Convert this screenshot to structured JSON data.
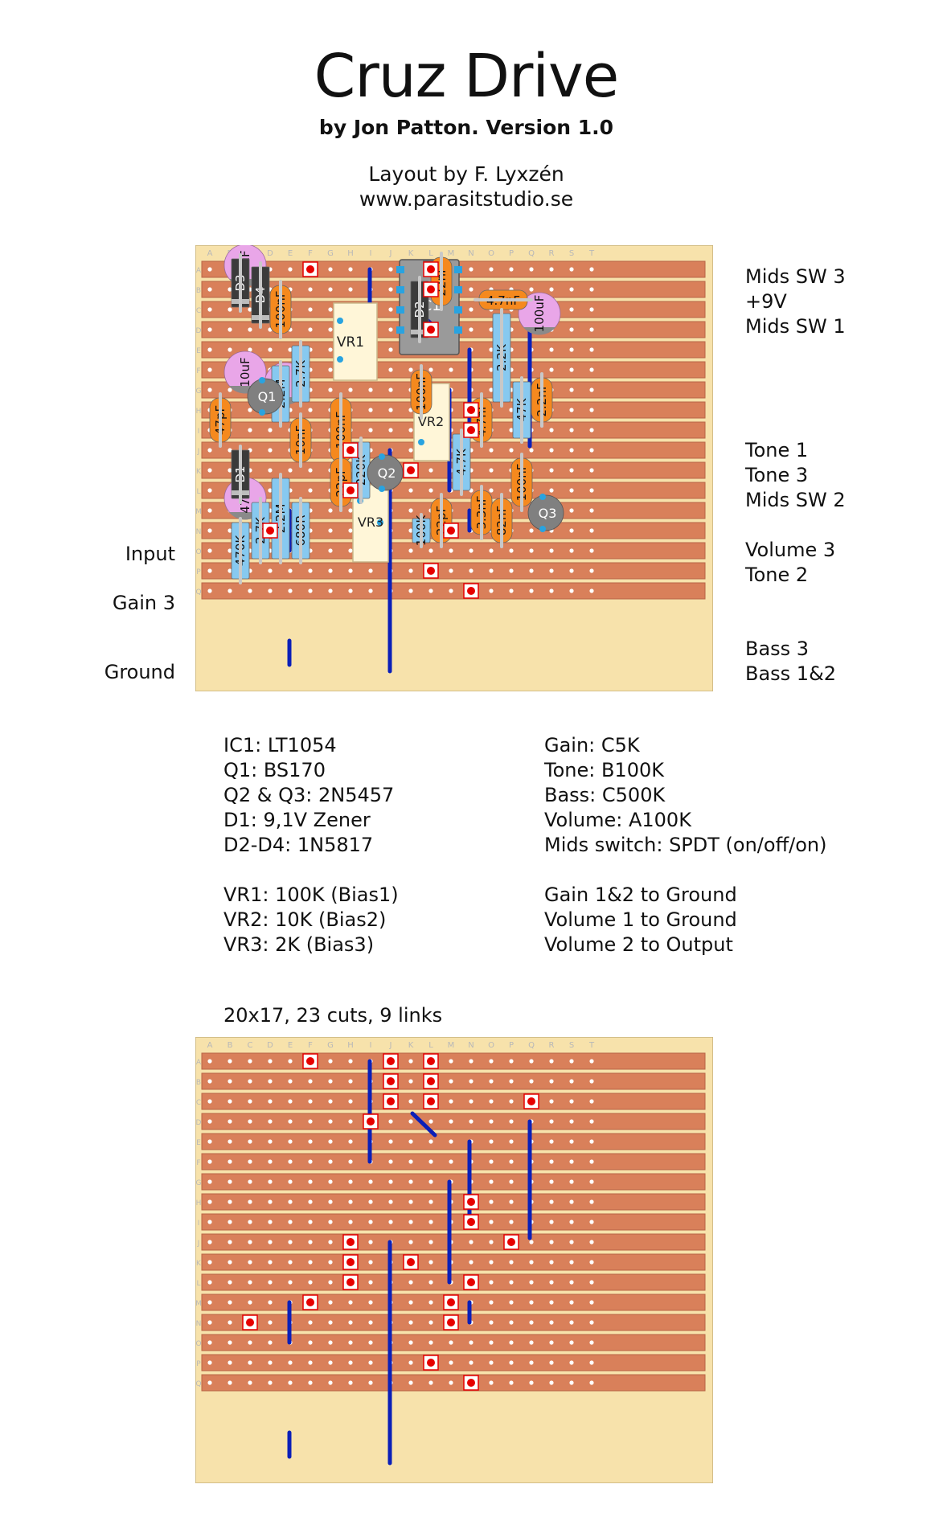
{
  "header": {
    "title": "Cruz Drive",
    "subtitle": "by Jon Patton. Version 1.0",
    "layout_by": "Layout by F. Lyxzén",
    "website": "www.parasitstudio.se"
  },
  "board": {
    "column_letters": [
      "A",
      "B",
      "C",
      "D",
      "E",
      "F",
      "G",
      "H",
      "I",
      "J",
      "K",
      "L",
      "M",
      "N",
      "O",
      "P",
      "Q",
      "R",
      "S",
      "T"
    ],
    "row_letters": [
      "A",
      "B",
      "C",
      "D",
      "E",
      "F",
      "G",
      "H",
      "I",
      "J",
      "K",
      "L",
      "M",
      "N",
      "O",
      "P",
      "Q"
    ],
    "colors": {
      "background": "#f7e2ab",
      "strip": "#d9805a",
      "strip_edge": "#b86446",
      "cut_mark": "#e60000",
      "link_wire": "#0b1fb8",
      "resistor": "#87c9f0",
      "capacitor_film": "#f5891e",
      "electrolytic": "#e9a6e8",
      "diode_body": "#3b3b3b",
      "transistor": "#808080",
      "trimmer": "#fff6d8",
      "ic_body": "#9a9a9a",
      "pin_cyan": "#29a3e0"
    }
  },
  "left_labels": {
    "input": "Input",
    "gain3": "Gain 3",
    "ground": "Ground"
  },
  "right_labels": {
    "mids_sw3": "Mids SW 3",
    "v9": "+9V",
    "mids_sw1": "Mids SW 1",
    "tone1": "Tone 1",
    "tone3": "Tone 3",
    "mids_sw2": "Mids SW 2",
    "volume3": "Volume 3",
    "tone2": "Tone 2",
    "bass3": "Bass 3",
    "bass12": "Bass 1&2"
  },
  "components": {
    "ic1": "IC1",
    "vr1": "VR1",
    "vr2": "VR2",
    "vr3": "VR3",
    "q1": "Q1",
    "q2": "Q2",
    "q3": "Q3",
    "d1": "D1",
    "d2": "D2",
    "d3": "D3",
    "d4": "D4",
    "c_10uF": "10uF",
    "c_47uF": "47uF",
    "c_100uF": "100uF",
    "c_100nF": "100nF",
    "c_22nF": "22nF",
    "c_4n7": "4.7nF",
    "c_47pF": "47pF",
    "c_10nF": "10nF",
    "c_22pF": "22pF",
    "c_2n2": "2.2nF",
    "c_3n3": "3.3nF",
    "c_82nF": "82nF",
    "r_2M2": "2.2M",
    "r_2K7": "2.7K",
    "r_2K2": "2.2K",
    "r_47K": "47K",
    "r_220K": "220K",
    "r_4K7": "4.7K",
    "r_470K": "470K",
    "r_680R": "680R",
    "r_100K": "100K"
  },
  "specs_left": [
    "IC1: LT1054",
    "Q1: BS170",
    "Q2 & Q3: 2N5457",
    "D1: 9,1V Zener",
    "D2-D4: 1N5817",
    "",
    "VR1: 100K (Bias1)",
    "VR2: 10K (Bias2)",
    "VR3: 2K (Bias3)"
  ],
  "specs_right": [
    "Gain: C5K",
    "Tone: B100K",
    "Bass: C500K",
    "Volume: A100K",
    "Mids switch: SPDT (on/off/on)",
    "",
    "Gain 1&2 to Ground",
    "Volume 1 to Ground",
    "Volume 2 to Output"
  ],
  "summary": "20x17, 23 cuts, 9 links"
}
